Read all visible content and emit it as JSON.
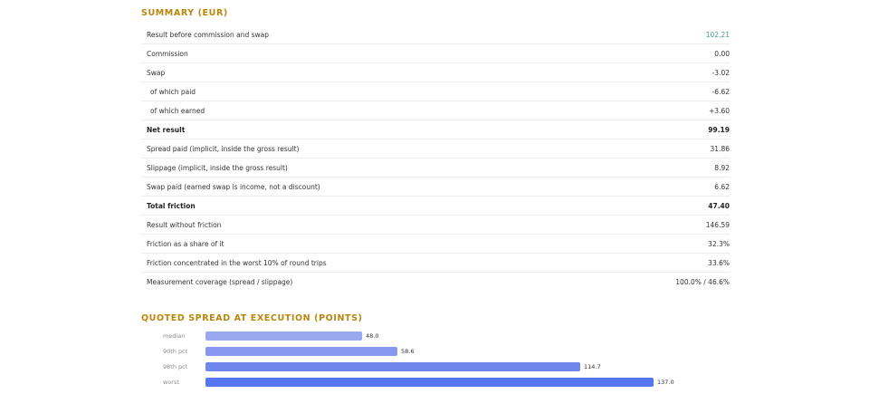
{
  "summary": {
    "title": "SUMMARY (EUR)",
    "rows": [
      {
        "label": "Result before commission and swap",
        "value": "102.21",
        "indent": false,
        "bold": false,
        "tone": "teal"
      },
      {
        "label": "Commission",
        "value": "0.00",
        "indent": false,
        "bold": false,
        "tone": ""
      },
      {
        "label": "Swap",
        "value": "-3.02",
        "indent": false,
        "bold": false,
        "tone": ""
      },
      {
        "label": "of which paid",
        "value": "-6.62",
        "indent": true,
        "bold": false,
        "tone": ""
      },
      {
        "label": "of which earned",
        "value": "+3.60",
        "indent": true,
        "bold": false,
        "tone": ""
      },
      {
        "label": "Net result",
        "value": "99.19",
        "indent": false,
        "bold": true,
        "tone": "green"
      },
      {
        "label": "Spread paid (implicit, inside the gross result)",
        "value": "31.86",
        "indent": false,
        "bold": false,
        "tone": ""
      },
      {
        "label": "Slippage (implicit, inside the gross result)",
        "value": "8.92",
        "indent": false,
        "bold": false,
        "tone": ""
      },
      {
        "label": "Swap paid (earned swap is income, not a discount)",
        "value": "6.62",
        "indent": false,
        "bold": false,
        "tone": ""
      },
      {
        "label": "Total friction",
        "value": "47.40",
        "indent": false,
        "bold": true,
        "tone": "gold"
      },
      {
        "label": "Result without friction",
        "value": "146.59",
        "indent": false,
        "bold": false,
        "tone": ""
      },
      {
        "label": "Friction as a share of it",
        "value": "32.3%",
        "indent": false,
        "bold": false,
        "tone": ""
      },
      {
        "label": "Friction concentrated in the worst 10% of round trips",
        "value": "33.6%",
        "indent": false,
        "bold": false,
        "tone": ""
      },
      {
        "label": "Measurement coverage (spread / slippage)",
        "value": "100.0% / 46.6%",
        "indent": false,
        "bold": false,
        "tone": ""
      }
    ]
  },
  "spread": {
    "title": "QUOTED SPREAD AT EXECUTION (POINTS)"
  },
  "chart_data": {
    "type": "bar",
    "orientation": "horizontal",
    "title": "QUOTED SPREAD AT EXECUTION (POINTS)",
    "categories": [
      "median",
      "90th pct",
      "98th pct",
      "worst"
    ],
    "values": [
      48.0,
      58.6,
      114.7,
      137.0
    ],
    "value_labels": [
      "48.0",
      "58.6",
      "114.7",
      "137.0"
    ],
    "colors": [
      "#9aa8f0",
      "#8898f0",
      "#6f86ee",
      "#5576ee"
    ],
    "xlim": [
      0,
      137.0
    ]
  },
  "colors": {
    "accent": "#b8860b",
    "positive_teal": "#3c9a8c",
    "net_green": "#1f6b44"
  }
}
